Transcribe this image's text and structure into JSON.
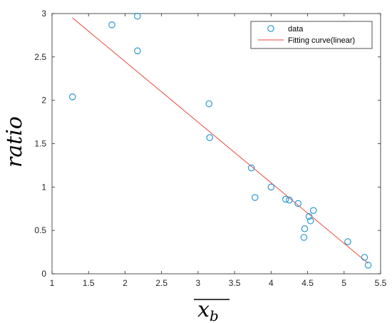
{
  "chart_data": {
    "type": "scatter",
    "title": "",
    "xlabel": "x_b",
    "ylabel": "ratio",
    "xlim": [
      1,
      5.5
    ],
    "ylim": [
      0,
      3
    ],
    "xticks": [
      1,
      1.5,
      2,
      2.5,
      3,
      3.5,
      4,
      4.5,
      5,
      5.5
    ],
    "xtick_labels": [
      "1",
      "1.5",
      "2",
      "2.5",
      "3",
      "3.5",
      "4",
      "4.5",
      "5",
      "5.5"
    ],
    "yticks": [
      0,
      0.5,
      1,
      1.5,
      2,
      2.5,
      3
    ],
    "ytick_labels": [
      "0",
      "0.5",
      "1",
      "1.5",
      "2",
      "2.5",
      "3"
    ],
    "grid": false,
    "legend_position": "top-right",
    "colors": {
      "data": "#2a9ad6",
      "fit": "#e8463c",
      "axis": "#262626"
    },
    "series": [
      {
        "name": "data",
        "kind": "markers",
        "x": [
          1.28,
          1.82,
          2.17,
          2.17,
          3.15,
          3.16,
          3.73,
          3.78,
          4.0,
          4.2,
          4.25,
          4.37,
          4.45,
          4.46,
          4.52,
          4.54,
          4.58,
          5.05,
          5.28,
          5.33
        ],
        "y": [
          2.04,
          2.87,
          2.97,
          2.57,
          1.96,
          1.57,
          1.22,
          0.88,
          1.0,
          0.86,
          0.85,
          0.81,
          0.42,
          0.52,
          0.66,
          0.61,
          0.73,
          0.37,
          0.19,
          0.1
        ]
      },
      {
        "name": "Fitting curve(linear)",
        "kind": "line",
        "x": [
          1.28,
          5.33
        ],
        "y": [
          2.95,
          0.12
        ]
      }
    ]
  }
}
